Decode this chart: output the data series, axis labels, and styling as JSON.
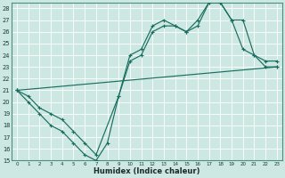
{
  "xlabel": "Humidex (Indice chaleur)",
  "background_color": "#cde8e2",
  "grid_color": "#b8d8d2",
  "line_color": "#1a6e60",
  "xlim_min": -0.5,
  "xlim_max": 23.5,
  "ylim_min": 15,
  "ylim_max": 28.5,
  "xticks": [
    0,
    1,
    2,
    3,
    4,
    5,
    6,
    7,
    8,
    9,
    10,
    11,
    12,
    13,
    14,
    15,
    16,
    17,
    18,
    19,
    20,
    21,
    22,
    23
  ],
  "yticks": [
    15,
    16,
    17,
    18,
    19,
    20,
    21,
    22,
    23,
    24,
    25,
    26,
    27,
    28
  ],
  "line1_x": [
    0,
    1,
    2,
    3,
    4,
    5,
    6,
    7,
    8,
    9,
    10,
    11,
    12,
    13,
    14,
    15,
    16,
    17,
    18,
    19,
    20,
    21,
    22,
    23
  ],
  "line1_y": [
    21,
    20,
    19,
    18,
    17.5,
    16.5,
    15.5,
    15,
    16.5,
    20.5,
    24,
    24.5,
    26.5,
    27,
    26.5,
    26,
    26.5,
    28.5,
    28.5,
    27,
    27,
    24,
    23.5,
    23.5
  ],
  "line2_x": [
    0,
    1,
    2,
    3,
    4,
    5,
    6,
    7,
    9,
    10,
    11,
    12,
    13,
    14,
    15,
    16,
    17,
    18,
    19,
    20,
    21,
    22,
    23
  ],
  "line2_y": [
    21,
    20.5,
    19.5,
    19,
    18.5,
    17.5,
    16.5,
    15.5,
    20.5,
    23.5,
    24,
    26,
    26.5,
    26.5,
    26,
    27,
    28.5,
    28.5,
    27,
    24.5,
    24,
    23,
    23
  ],
  "line3_x": [
    0,
    23
  ],
  "line3_y": [
    21,
    23
  ]
}
